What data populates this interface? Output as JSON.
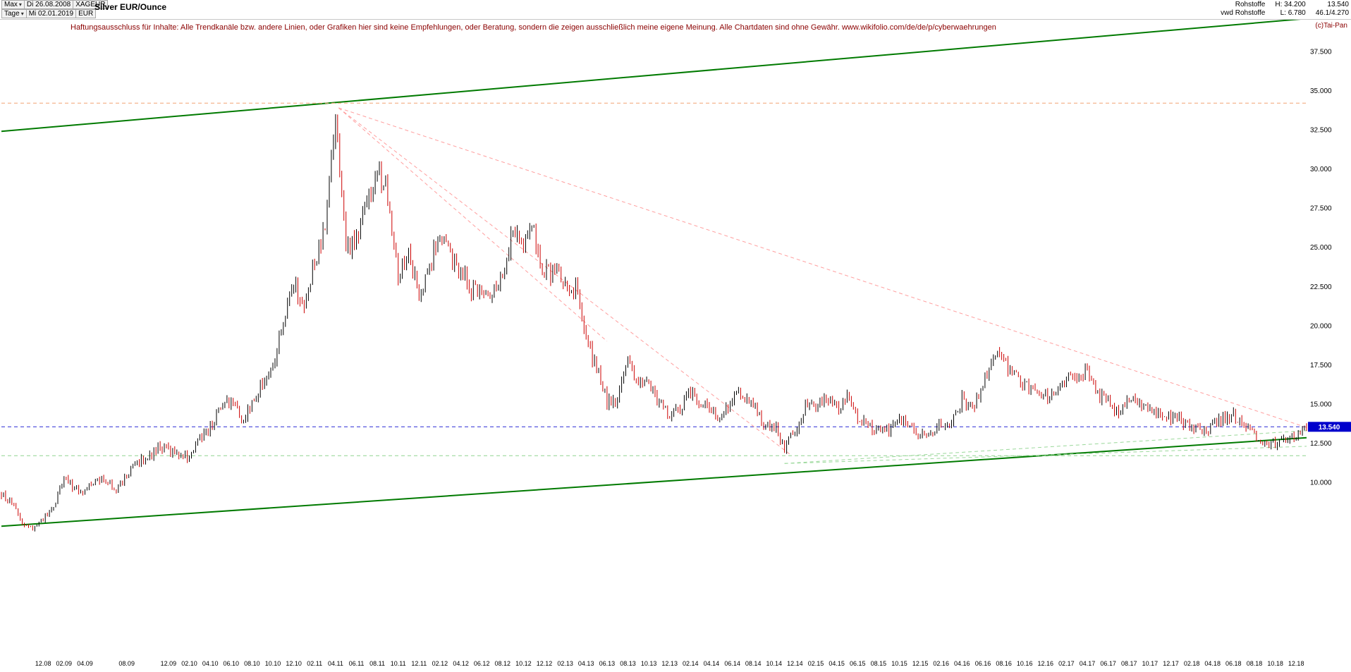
{
  "header": {
    "range_button": "Max",
    "interval_button": "Tage",
    "date_from": "Di 26.08.2008",
    "date_to": "Mi 02.01.2019",
    "symbol": "XAGEUR",
    "currency": "EUR",
    "title": "Silver EUR/Ounce",
    "category": "Rohstoffe",
    "source": "vwd Rohstoffe",
    "high_label": "H: 34.200",
    "low_label": "L: 6.780",
    "last_price": "13.540",
    "change": "46.1/4.270",
    "attribution": "(c)Tai-Pan"
  },
  "disclaimer": "Haftungsausschluss für Inhalte: Alle Trendkanäle bzw. andere Linien, oder Grafiken hier sind keine Empfehlungen, oder Beratung, sondern die zeigen ausschließlich meine eigene Meinung. Alle Chartdaten sind ohne Gewähr.  www.wikifolio.com/de/de/p/cyberwaehrungen",
  "price_tag": "13.540",
  "chart_data": {
    "type": "candlestick",
    "title": "Silver EUR/Ounce",
    "symbol": "XAGEUR",
    "currency": "EUR",
    "period_from": "26.08.2008",
    "period_to": "02.01.2019",
    "high": 34.2,
    "low": 6.78,
    "last": 13.54,
    "x_unit": "months since 2008-08",
    "x_range": [
      0,
      125
    ],
    "y_axis_side": "right",
    "grid": false,
    "yticks": [
      {
        "label": "37.500",
        "v": 37.5
      },
      {
        "label": "35.000",
        "v": 35.0
      },
      {
        "label": "32.500",
        "v": 32.5
      },
      {
        "label": "30.000",
        "v": 30.0
      },
      {
        "label": "27.500",
        "v": 27.5
      },
      {
        "label": "25.000",
        "v": 25.0
      },
      {
        "label": "22.500",
        "v": 22.5
      },
      {
        "label": "20.000",
        "v": 20.0
      },
      {
        "label": "17.500",
        "v": 17.5
      },
      {
        "label": "15.000",
        "v": 15.0
      },
      {
        "label": "12.500",
        "v": 12.5
      },
      {
        "label": "10.000",
        "v": 10.0
      }
    ],
    "xticks": [
      {
        "label": "12.08",
        "m": 4
      },
      {
        "label": "02.09",
        "m": 6
      },
      {
        "label": "04.09",
        "m": 8
      },
      {
        "label": "08.09",
        "m": 12
      },
      {
        "label": "12.09",
        "m": 16
      },
      {
        "label": "02.10",
        "m": 18
      },
      {
        "label": "04.10",
        "m": 20
      },
      {
        "label": "06.10",
        "m": 22
      },
      {
        "label": "08.10",
        "m": 24
      },
      {
        "label": "10.10",
        "m": 26
      },
      {
        "label": "12.10",
        "m": 28
      },
      {
        "label": "02.11",
        "m": 30
      },
      {
        "label": "04.11",
        "m": 32
      },
      {
        "label": "06.11",
        "m": 34
      },
      {
        "label": "08.11",
        "m": 36
      },
      {
        "label": "10.11",
        "m": 38
      },
      {
        "label": "12.11",
        "m": 40
      },
      {
        "label": "02.12",
        "m": 42
      },
      {
        "label": "04.12",
        "m": 44
      },
      {
        "label": "06.12",
        "m": 46
      },
      {
        "label": "08.12",
        "m": 48
      },
      {
        "label": "10.12",
        "m": 50
      },
      {
        "label": "12.12",
        "m": 52
      },
      {
        "label": "02.13",
        "m": 54
      },
      {
        "label": "04.13",
        "m": 56
      },
      {
        "label": "06.13",
        "m": 58
      },
      {
        "label": "08.13",
        "m": 60
      },
      {
        "label": "10.13",
        "m": 62
      },
      {
        "label": "12.13",
        "m": 64
      },
      {
        "label": "02.14",
        "m": 66
      },
      {
        "label": "04.14",
        "m": 68
      },
      {
        "label": "06.14",
        "m": 70
      },
      {
        "label": "08.14",
        "m": 72
      },
      {
        "label": "10.14",
        "m": 74
      },
      {
        "label": "12.14",
        "m": 76
      },
      {
        "label": "02.15",
        "m": 78
      },
      {
        "label": "04.15",
        "m": 80
      },
      {
        "label": "06.15",
        "m": 82
      },
      {
        "label": "08.15",
        "m": 84
      },
      {
        "label": "10.15",
        "m": 86
      },
      {
        "label": "12.15",
        "m": 88
      },
      {
        "label": "02.16",
        "m": 90
      },
      {
        "label": "04.16",
        "m": 92
      },
      {
        "label": "06.16",
        "m": 94
      },
      {
        "label": "08.16",
        "m": 96
      },
      {
        "label": "10.16",
        "m": 98
      },
      {
        "label": "12.16",
        "m": 100
      },
      {
        "label": "02.17",
        "m": 102
      },
      {
        "label": "04.17",
        "m": 104
      },
      {
        "label": "06.17",
        "m": 106
      },
      {
        "label": "08.17",
        "m": 108
      },
      {
        "label": "10.17",
        "m": 110
      },
      {
        "label": "12.17",
        "m": 112
      },
      {
        "label": "02.18",
        "m": 114
      },
      {
        "label": "04.18",
        "m": 116
      },
      {
        "label": "06.18",
        "m": 118
      },
      {
        "label": "08.18",
        "m": 120
      },
      {
        "label": "10.18",
        "m": 122
      },
      {
        "label": "12.18",
        "m": 124
      }
    ],
    "monthly_close_eur": [
      9.27,
      8.6,
      7.4,
      7.0,
      7.6,
      8.4,
      10.3,
      9.6,
      9.5,
      10.0,
      10.2,
      9.6,
      10.4,
      11.3,
      11.5,
      12.2,
      12.0,
      11.9,
      11.5,
      12.8,
      13.5,
      14.8,
      15.2,
      14.0,
      14.9,
      16.3,
      17.5,
      20.0,
      22.8,
      21.0,
      24.2,
      26.0,
      33.5,
      25.0,
      25.5,
      27.8,
      30.0,
      28.5,
      23.5,
      24.5,
      22.0,
      23.8,
      26.2,
      24.5,
      23.6,
      22.4,
      21.8,
      22.4,
      23.2,
      26.6,
      25.2,
      26.0,
      23.2,
      23.6,
      22.4,
      22.6,
      18.8,
      17.5,
      15.2,
      15.3,
      17.6,
      16.2,
      16.4,
      15.0,
      14.3,
      14.6,
      15.8,
      15.1,
      14.4,
      14.1,
      15.4,
      15.6,
      15.0,
      13.7,
      13.6,
      12.3,
      13.2,
      15.0,
      14.9,
      15.2,
      14.7,
      15.4,
      14.2,
      13.6,
      13.3,
      13.2,
      14.1,
      13.4,
      12.9,
      13.1,
      13.8,
      13.7,
      15.3,
      14.6,
      16.3,
      18.2,
      17.5,
      17.3,
      16.2,
      15.8,
      15.4,
      15.6,
      16.6,
      16.4,
      17.0,
      15.6,
      15.2,
      14.4,
      15.4,
      15.1,
      14.5,
      14.4,
      14.1,
      14.0,
      13.5,
      13.3,
      13.6,
      14.1,
      14.3,
      13.5,
      12.9,
      12.3,
      12.4,
      12.6,
      12.9,
      13.54
    ],
    "colors": {
      "up": "#000000",
      "down": "#cc0000",
      "channel": "#007a00",
      "fan": "#ff9e9e",
      "ath": "#f2a272",
      "last_line": "#2929d6",
      "support": "#8fd48f",
      "tag_bg": "#0000cc",
      "tag_text": "#ffffff"
    },
    "trend_lines": [
      {
        "name": "upper-channel",
        "style": "solid",
        "color": "#007a00",
        "width": 2,
        "points": [
          [
            0,
            32.4
          ],
          [
            125,
            39.6
          ]
        ]
      },
      {
        "name": "lower-channel",
        "style": "solid",
        "color": "#007a00",
        "width": 2,
        "points": [
          [
            0,
            7.2
          ],
          [
            125,
            12.85
          ]
        ]
      },
      {
        "name": "ath-horizontal",
        "style": "dashed",
        "color": "#f2a272",
        "width": 1,
        "points": [
          [
            0,
            34.2
          ],
          [
            125,
            34.2
          ]
        ]
      },
      {
        "name": "last-price-horizontal",
        "style": "dashed",
        "color": "#2929d6",
        "width": 1,
        "points": [
          [
            0,
            13.54
          ],
          [
            125,
            13.54
          ]
        ]
      },
      {
        "name": "support-horizontal",
        "style": "dashed",
        "color": "#8fd48f",
        "width": 1,
        "points": [
          [
            0,
            11.7
          ],
          [
            125,
            11.7
          ]
        ]
      },
      {
        "name": "resistance-fan-1",
        "style": "dashed",
        "color": "#ff9e9e",
        "width": 1,
        "points": [
          [
            32.3,
            33.9
          ],
          [
            125,
            13.5
          ]
        ]
      },
      {
        "name": "resistance-fan-2",
        "style": "dashed",
        "color": "#ff9e9e",
        "width": 1,
        "points": [
          [
            32.3,
            33.9
          ],
          [
            75.5,
            11.8
          ]
        ]
      },
      {
        "name": "resistance-fan-3",
        "style": "dashed",
        "color": "#ff9e9e",
        "width": 1,
        "points": [
          [
            32.3,
            33.9
          ],
          [
            58,
            19.0
          ]
        ]
      },
      {
        "name": "support-fan-1",
        "style": "dashed",
        "color": "#9ad89a",
        "width": 1,
        "points": [
          [
            75,
            11.2
          ],
          [
            125,
            13.3
          ]
        ]
      },
      {
        "name": "support-fan-2",
        "style": "dashed",
        "color": "#9ad89a",
        "width": 1,
        "points": [
          [
            75,
            11.2
          ],
          [
            125,
            12.3
          ]
        ]
      }
    ]
  }
}
